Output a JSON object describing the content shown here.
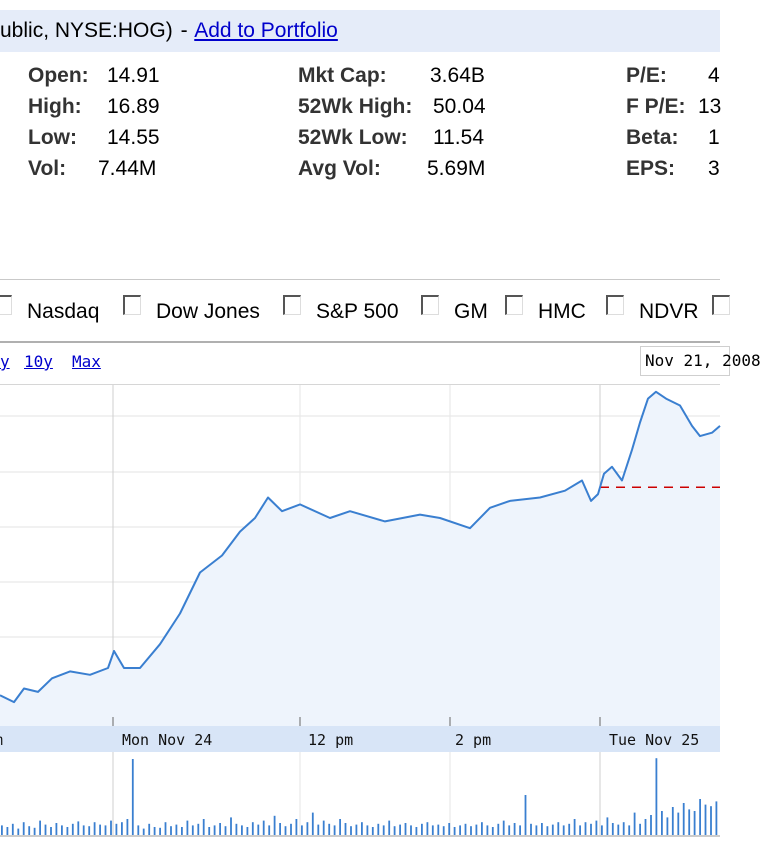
{
  "header": {
    "prefix": "ublic, NYSE:HOG)",
    "separator": "-",
    "add_to_portfolio": "Add to Portfolio"
  },
  "stats": {
    "col1": [
      {
        "label": "Open:",
        "value": "14.91"
      },
      {
        "label": "High:",
        "value": "16.89"
      },
      {
        "label": "Low:",
        "value": "14.55"
      },
      {
        "label": "Vol:",
        "value": "7.44M"
      }
    ],
    "col2": [
      {
        "label": "Mkt Cap:",
        "value": "3.64B"
      },
      {
        "label": "52Wk High:",
        "value": "50.04"
      },
      {
        "label": "52Wk Low:",
        "value": "11.54"
      },
      {
        "label": "Avg Vol:",
        "value": "5.69M"
      }
    ],
    "col3": [
      {
        "label": "P/E:",
        "value": "4"
      },
      {
        "label": "F P/E:",
        "value": "13"
      },
      {
        "label": "Beta:",
        "value": "1"
      },
      {
        "label": "EPS:",
        "value": "3"
      }
    ]
  },
  "compare": [
    "Nasdaq",
    "Dow Jones",
    "S&P 500",
    "GM",
    "HMC",
    "NDVR"
  ],
  "zoom_links": [
    "y",
    "10y",
    "Max"
  ],
  "date_field": "Nov 21, 2008",
  "chart": {
    "line_color": "#3a7fd0",
    "fill_color": "#eef4fc",
    "ref_line_color": "#cc0000",
    "x_axis_labels": [
      "m",
      "Mon Nov 24",
      "12 pm",
      "2 pm",
      "Tue Nov 25"
    ]
  },
  "chart_data": {
    "type": "area",
    "title": "",
    "xlabel": "",
    "ylabel": "",
    "x_tick_labels": [
      "m",
      "Mon Nov 24",
      "12 pm",
      "2 pm",
      "Tue Nov 25"
    ],
    "price_series": [
      [
        0,
        0.91
      ],
      [
        14,
        0.93
      ],
      [
        24,
        0.89
      ],
      [
        38,
        0.9
      ],
      [
        52,
        0.86
      ],
      [
        70,
        0.84
      ],
      [
        90,
        0.85
      ],
      [
        108,
        0.83
      ],
      [
        114,
        0.78
      ],
      [
        124,
        0.83
      ],
      [
        140,
        0.83
      ],
      [
        160,
        0.76
      ],
      [
        180,
        0.67
      ],
      [
        200,
        0.55
      ],
      [
        222,
        0.5
      ],
      [
        240,
        0.43
      ],
      [
        255,
        0.39
      ],
      [
        268,
        0.33
      ],
      [
        282,
        0.37
      ],
      [
        300,
        0.35
      ],
      [
        330,
        0.39
      ],
      [
        350,
        0.37
      ],
      [
        385,
        0.4
      ],
      [
        420,
        0.38
      ],
      [
        440,
        0.39
      ],
      [
        470,
        0.42
      ],
      [
        490,
        0.36
      ],
      [
        510,
        0.34
      ],
      [
        540,
        0.33
      ],
      [
        565,
        0.31
      ],
      [
        582,
        0.28
      ],
      [
        591,
        0.34
      ],
      [
        598,
        0.32
      ],
      [
        604,
        0.26
      ],
      [
        612,
        0.24
      ],
      [
        622,
        0.28
      ],
      [
        632,
        0.19
      ],
      [
        640,
        0.11
      ],
      [
        648,
        0.04
      ],
      [
        656,
        0.02
      ],
      [
        666,
        0.04
      ],
      [
        680,
        0.06
      ],
      [
        692,
        0.12
      ],
      [
        700,
        0.15
      ],
      [
        712,
        0.14
      ],
      [
        720,
        0.12
      ]
    ],
    "previous_close_level": 0.3,
    "volume_bars": [
      0.12,
      0.1,
      0.14,
      0.08,
      0.16,
      0.11,
      0.09,
      0.18,
      0.13,
      0.1,
      0.15,
      0.12,
      0.1,
      0.14,
      0.17,
      0.12,
      0.11,
      0.16,
      0.13,
      0.12,
      0.18,
      0.14,
      0.16,
      0.2,
      0.95,
      0.12,
      0.08,
      0.14,
      0.1,
      0.09,
      0.16,
      0.11,
      0.13,
      0.1,
      0.18,
      0.12,
      0.14,
      0.2,
      0.1,
      0.12,
      0.15,
      0.11,
      0.22,
      0.14,
      0.12,
      0.1,
      0.16,
      0.13,
      0.18,
      0.12,
      0.24,
      0.15,
      0.11,
      0.14,
      0.2,
      0.12,
      0.16,
      0.28,
      0.13,
      0.18,
      0.14,
      0.12,
      0.2,
      0.15,
      0.11,
      0.13,
      0.16,
      0.12,
      0.1,
      0.14,
      0.12,
      0.18,
      0.11,
      0.13,
      0.15,
      0.12,
      0.1,
      0.14,
      0.16,
      0.12,
      0.13,
      0.11,
      0.15,
      0.1,
      0.12,
      0.14,
      0.11,
      0.13,
      0.16,
      0.12,
      0.1,
      0.14,
      0.18,
      0.12,
      0.15,
      0.12,
      0.5,
      0.14,
      0.12,
      0.15,
      0.11,
      0.13,
      0.16,
      0.12,
      0.14,
      0.2,
      0.12,
      0.16,
      0.14,
      0.18,
      0.12,
      0.22,
      0.15,
      0.13,
      0.16,
      0.12,
      0.28,
      0.14,
      0.2,
      0.25,
      0.96,
      0.3,
      0.22,
      0.35,
      0.28,
      0.4,
      0.32,
      0.3,
      0.45,
      0.38,
      0.36,
      0.42
    ]
  }
}
